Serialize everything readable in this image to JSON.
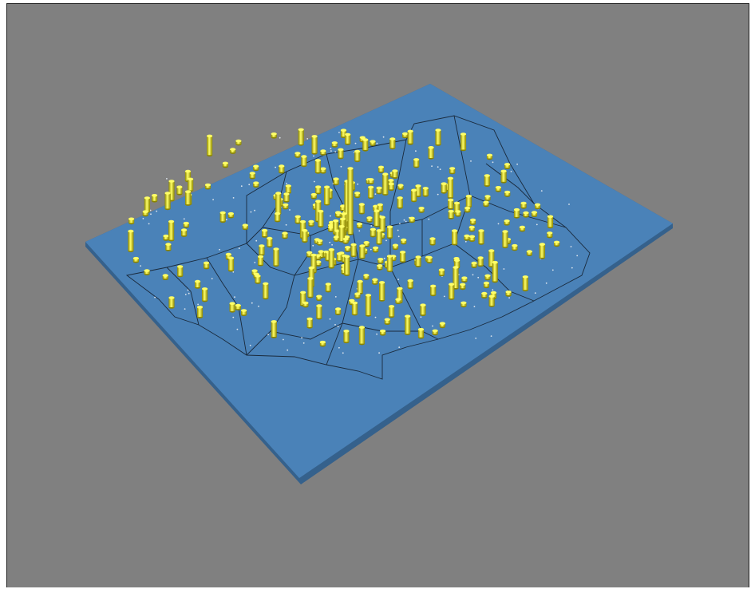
{
  "scene": {
    "background_color": "#808080",
    "board_color": "#4a82b8",
    "board_edge_color": "#35618c",
    "boundary_color": "#1a2a3c",
    "bar_color": "#e8e000",
    "bar_highlight_color": "#ffff66",
    "bar_shadow_color": "#8a8400",
    "dot_color": "#dfe6ee",
    "view": "3d-perspective",
    "bar_count": 275,
    "tallest_bar_rank": 1
  }
}
